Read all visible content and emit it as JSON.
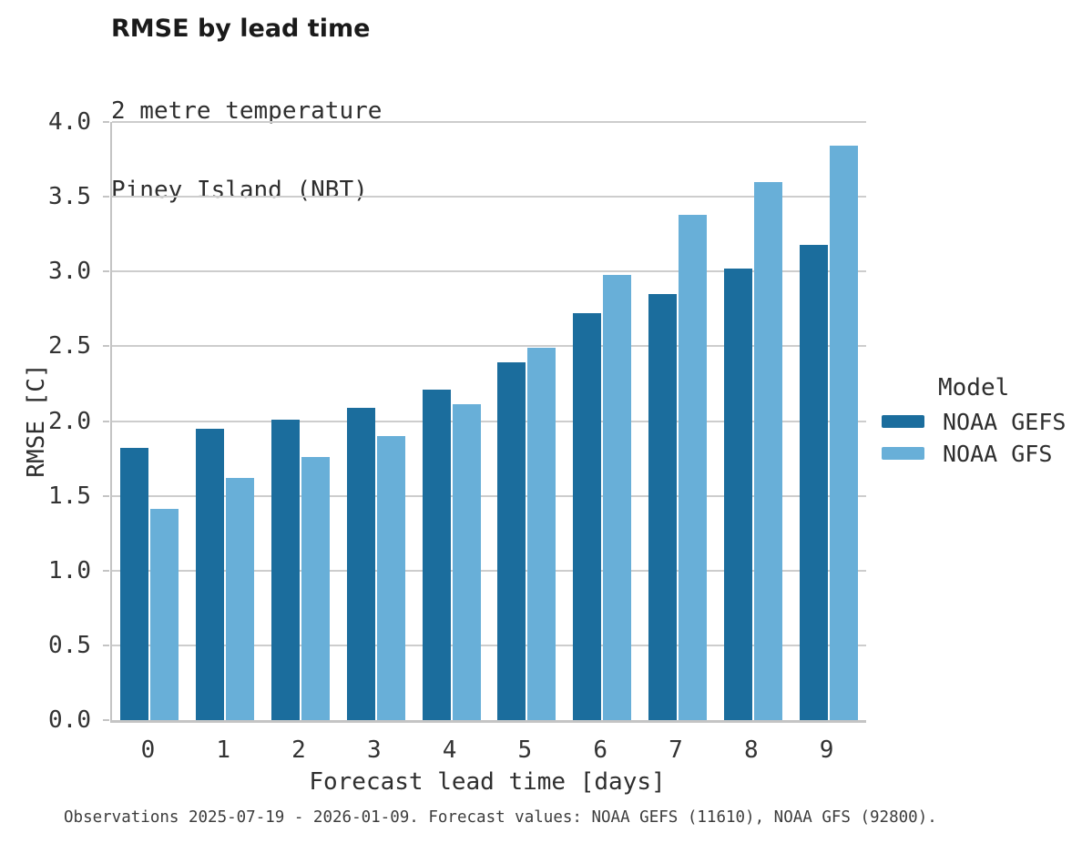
{
  "header": {
    "title": "RMSE by lead time",
    "subtitle_line1": "2 metre temperature",
    "subtitle_line2": "Piney Island (NBT)"
  },
  "legend": {
    "title": "Model",
    "items": [
      "NOAA GEFS",
      "NOAA GFS"
    ]
  },
  "footer": {
    "text": "Observations 2025-07-19 - 2026-01-09. Forecast values: NOAA GEFS (11610), NOAA GFS (92800)."
  },
  "colors": {
    "gefs_dark_blue": "#1b6d9d",
    "gfs_light_blue": "#68afd8",
    "gridline_gray": "#cdcdcd",
    "spine_gray": "#c4c4c4"
  },
  "chart_data": {
    "type": "bar",
    "title": "RMSE by lead time",
    "subtitle": [
      "2 metre temperature",
      "Piney Island (NBT)"
    ],
    "categories": [
      "0",
      "1",
      "2",
      "3",
      "4",
      "5",
      "6",
      "7",
      "8",
      "9"
    ],
    "series": [
      {
        "name": "NOAA GEFS",
        "color": "#1b6d9d",
        "values": [
          1.82,
          1.95,
          2.01,
          2.09,
          2.21,
          2.39,
          2.72,
          2.85,
          3.02,
          3.18
        ]
      },
      {
        "name": "NOAA GFS",
        "color": "#68afd8",
        "values": [
          1.41,
          1.62,
          1.76,
          1.9,
          2.11,
          2.49,
          2.98,
          3.38,
          3.6,
          3.84
        ]
      }
    ],
    "xlabel": "Forecast lead time [days]",
    "ylabel": "RMSE [C]",
    "ylim": [
      0,
      4
    ],
    "y_ticks": [
      "0.0",
      "0.5",
      "1.0",
      "1.5",
      "2.0",
      "2.5",
      "3.0",
      "3.5",
      "4.0"
    ],
    "legend_title": "Model",
    "legend_position": "right-center",
    "grid": true,
    "bar_layout": "grouped-dodge"
  }
}
